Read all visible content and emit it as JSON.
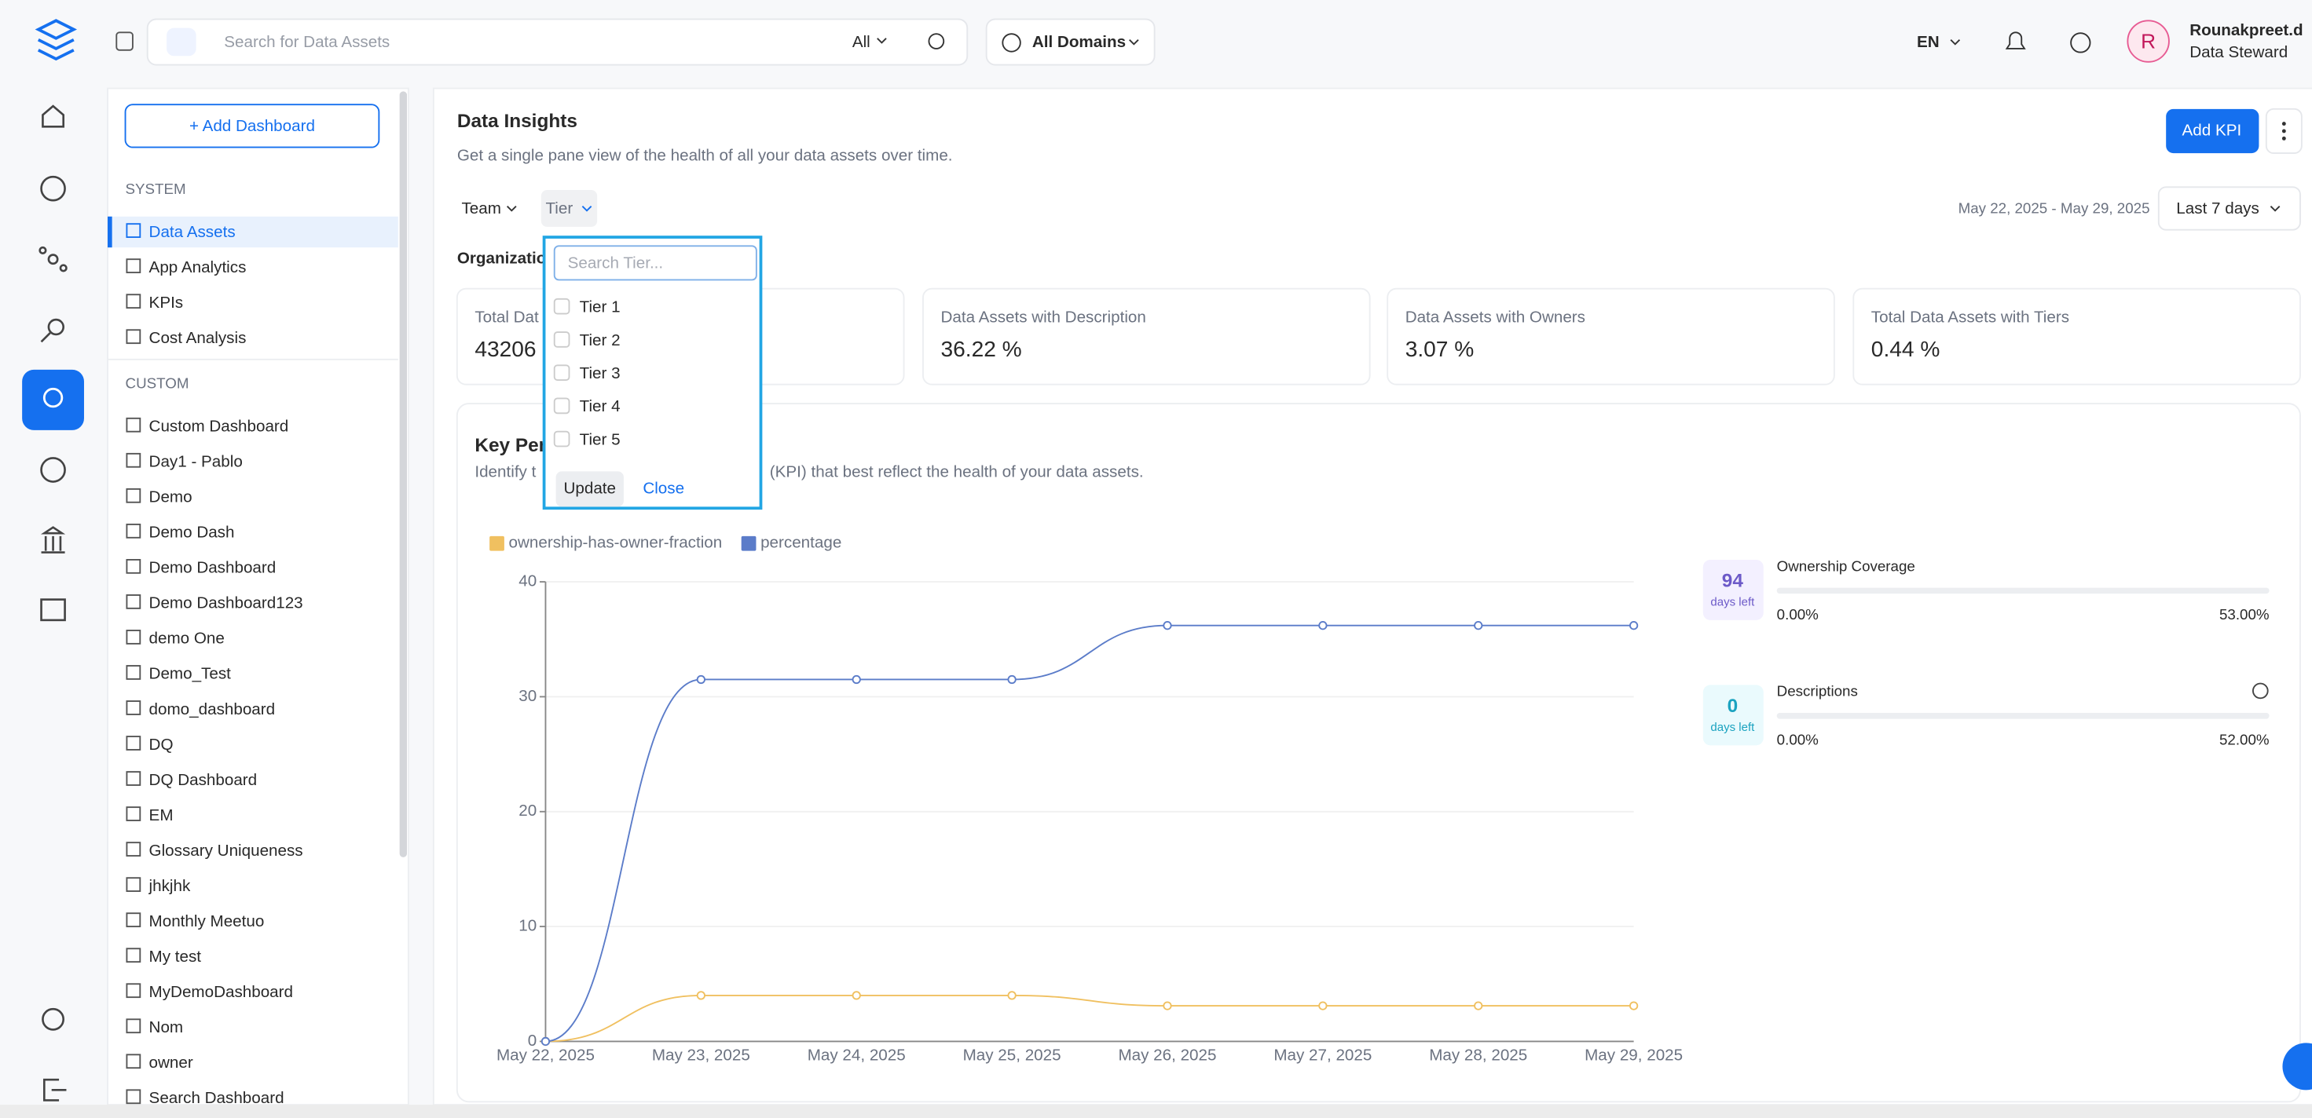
{
  "top_bar": {
    "search_placeholder": "Search for Data Assets",
    "search_filter": "All",
    "domains": "All Domains",
    "language": "EN",
    "avatar": "R",
    "user_name": "Rounakpreet.d",
    "user_role": "Data Steward"
  },
  "sidebar": {
    "add_button": "+ Add Dashboard",
    "system_label": "SYSTEM",
    "system_items": [
      "Data Assets",
      "App Analytics",
      "KPIs",
      "Cost Analysis"
    ],
    "custom_label": "CUSTOM",
    "custom_items": [
      "Custom Dashboard",
      "Day1 - Pablo",
      "Demo",
      "Demo Dash",
      "Demo Dashboard",
      "Demo Dashboard123",
      "demo One",
      "Demo_Test",
      "domo_dashboard",
      "DQ",
      "DQ Dashboard",
      "EM",
      "Glossary Uniqueness",
      "jhkjhk",
      "Monthly Meetuo",
      "My test",
      "MyDemoDashboard",
      "Nom",
      "owner",
      "Search Dashboard"
    ]
  },
  "header": {
    "title": "Data Insights",
    "subtitle": "Get a single pane view of the health of all your data assets over time.",
    "filters": [
      "Team",
      "Tier"
    ],
    "date_range": "May 22, 2025 - May 29, 2025",
    "period": "Last 7 days",
    "add_kpi": "Add KPI",
    "org_label": "Organizatio"
  },
  "cards": [
    {
      "label": "Total Dat",
      "value": "43206"
    },
    {
      "label": "Data Assets with Description",
      "value": "36.22 %"
    },
    {
      "label": "Data Assets with Owners",
      "value": "3.07 %"
    },
    {
      "label": "Total Data Assets with Tiers",
      "value": "0.44 %"
    }
  ],
  "kpi_section": {
    "title": "Key Per",
    "desc_start": "Identify t",
    "desc_end": "(KPI) that best reflect the health of your data assets.",
    "kpis": [
      {
        "days": 94,
        "days_label": "days left",
        "name": "Ownership Coverage",
        "start": "0.00%",
        "target": "53.00%"
      },
      {
        "days": 0,
        "days_label": "days left",
        "name": "Descriptions",
        "start": "0.00%",
        "target": "52.00%"
      }
    ]
  },
  "tier_dropdown": {
    "search_placeholder": "Search Tier...",
    "options": [
      "Tier 1",
      "Tier 2",
      "Tier 3",
      "Tier 4",
      "Tier 5"
    ],
    "update": "Update",
    "close": "Close"
  },
  "chart_data": {
    "type": "line",
    "categories": [
      "May 22, 2025",
      "May 23, 2025",
      "May 24, 2025",
      "May 25, 2025",
      "May 26, 2025",
      "May 27, 2025",
      "May 28, 2025",
      "May 29, 2025"
    ],
    "series": [
      {
        "name": "ownership-has-owner-fraction",
        "color": "#f0c060",
        "values": [
          0,
          4,
          4,
          4,
          3.1,
          3.1,
          3.1,
          3.1
        ]
      },
      {
        "name": "percentage",
        "color": "#5b7cc9",
        "values": [
          0,
          31.5,
          31.5,
          31.5,
          36.2,
          36.2,
          36.2,
          36.2
        ]
      }
    ],
    "ylim": [
      0,
      40
    ],
    "yticks": [
      0,
      10,
      20,
      30,
      40
    ],
    "grid": true
  }
}
